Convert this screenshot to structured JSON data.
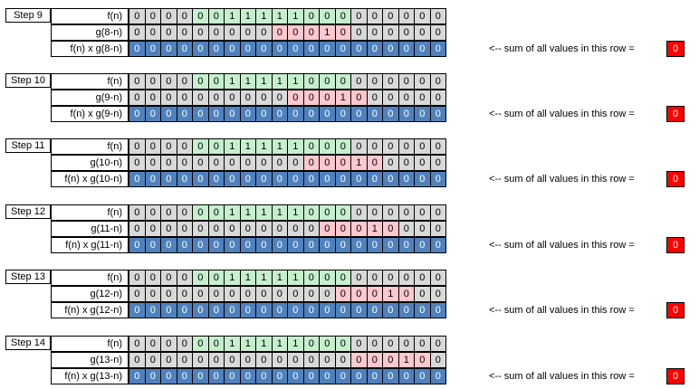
{
  "note_text": "<--  sum of all values in this row =",
  "steps": [
    {
      "label": "Step 9",
      "rows": [
        {
          "label": "f(n)",
          "values": [
            "0",
            "0",
            "0",
            "0",
            "0",
            "0",
            "1",
            "1",
            "1",
            "1",
            "1",
            "0",
            "0",
            "0",
            "0",
            "0",
            "0",
            "0",
            "0",
            "0"
          ],
          "colors": [
            "g",
            "g",
            "g",
            "g",
            "G",
            "G",
            "G",
            "G",
            "G",
            "G",
            "G",
            "G",
            "G",
            "G",
            "g",
            "g",
            "g",
            "g",
            "g",
            "g"
          ]
        },
        {
          "label": "g(8-n)",
          "values": [
            "0",
            "0",
            "0",
            "0",
            "0",
            "0",
            "0",
            "0",
            "0",
            "0",
            "0",
            "0",
            "1",
            "0",
            "0",
            "0",
            "0",
            "0",
            "0",
            "0"
          ],
          "colors": [
            "g",
            "g",
            "g",
            "g",
            "g",
            "g",
            "g",
            "g",
            "g",
            "P",
            "P",
            "P",
            "P",
            "P",
            "g",
            "g",
            "g",
            "g",
            "g",
            "g"
          ]
        },
        {
          "label": "f(n) x g(8-n)",
          "values": [
            "0",
            "0",
            "0",
            "0",
            "0",
            "0",
            "0",
            "0",
            "0",
            "0",
            "0",
            "0",
            "0",
            "0",
            "0",
            "0",
            "0",
            "0",
            "0",
            "0"
          ],
          "colors": [
            "B",
            "B",
            "B",
            "B",
            "B",
            "B",
            "B",
            "B",
            "B",
            "B",
            "B",
            "B",
            "B",
            "B",
            "B",
            "B",
            "B",
            "B",
            "B",
            "B"
          ]
        }
      ],
      "sum": "0"
    },
    {
      "label": "Step 10",
      "rows": [
        {
          "label": "f(n)",
          "values": [
            "0",
            "0",
            "0",
            "0",
            "0",
            "0",
            "1",
            "1",
            "1",
            "1",
            "1",
            "0",
            "0",
            "0",
            "0",
            "0",
            "0",
            "0",
            "0",
            "0"
          ],
          "colors": [
            "g",
            "g",
            "g",
            "g",
            "G",
            "G",
            "G",
            "G",
            "G",
            "G",
            "G",
            "G",
            "G",
            "G",
            "g",
            "g",
            "g",
            "g",
            "g",
            "g"
          ]
        },
        {
          "label": "g(9-n)",
          "values": [
            "0",
            "0",
            "0",
            "0",
            "0",
            "0",
            "0",
            "0",
            "0",
            "0",
            "0",
            "0",
            "0",
            "1",
            "0",
            "0",
            "0",
            "0",
            "0",
            "0"
          ],
          "colors": [
            "g",
            "g",
            "g",
            "g",
            "g",
            "g",
            "g",
            "g",
            "g",
            "g",
            "P",
            "P",
            "P",
            "P",
            "P",
            "g",
            "g",
            "g",
            "g",
            "g"
          ]
        },
        {
          "label": "f(n) x g(9-n)",
          "values": [
            "0",
            "0",
            "0",
            "0",
            "0",
            "0",
            "0",
            "0",
            "0",
            "0",
            "0",
            "0",
            "0",
            "0",
            "0",
            "0",
            "0",
            "0",
            "0",
            "0"
          ],
          "colors": [
            "B",
            "B",
            "B",
            "B",
            "B",
            "B",
            "B",
            "B",
            "B",
            "B",
            "B",
            "B",
            "B",
            "B",
            "B",
            "B",
            "B",
            "B",
            "B",
            "B"
          ]
        }
      ],
      "sum": "0"
    },
    {
      "label": "Step 11",
      "rows": [
        {
          "label": "f(n)",
          "values": [
            "0",
            "0",
            "0",
            "0",
            "0",
            "0",
            "1",
            "1",
            "1",
            "1",
            "1",
            "0",
            "0",
            "0",
            "0",
            "0",
            "0",
            "0",
            "0",
            "0"
          ],
          "colors": [
            "g",
            "g",
            "g",
            "g",
            "G",
            "G",
            "G",
            "G",
            "G",
            "G",
            "G",
            "G",
            "G",
            "G",
            "g",
            "g",
            "g",
            "g",
            "g",
            "g"
          ]
        },
        {
          "label": "g(10-n)",
          "values": [
            "0",
            "0",
            "0",
            "0",
            "0",
            "0",
            "0",
            "0",
            "0",
            "0",
            "0",
            "0",
            "0",
            "0",
            "1",
            "0",
            "0",
            "0",
            "0",
            "0"
          ],
          "colors": [
            "g",
            "g",
            "g",
            "g",
            "g",
            "g",
            "g",
            "g",
            "g",
            "g",
            "g",
            "P",
            "P",
            "P",
            "P",
            "P",
            "g",
            "g",
            "g",
            "g"
          ]
        },
        {
          "label": "f(n) x g(10-n)",
          "values": [
            "0",
            "0",
            "0",
            "0",
            "0",
            "0",
            "0",
            "0",
            "0",
            "0",
            "0",
            "0",
            "0",
            "0",
            "0",
            "0",
            "0",
            "0",
            "0",
            "0"
          ],
          "colors": [
            "B",
            "B",
            "B",
            "B",
            "B",
            "B",
            "B",
            "B",
            "B",
            "B",
            "B",
            "B",
            "B",
            "B",
            "B",
            "B",
            "B",
            "B",
            "B",
            "B"
          ]
        }
      ],
      "sum": "0"
    },
    {
      "label": "Step 12",
      "rows": [
        {
          "label": "f(n)",
          "values": [
            "0",
            "0",
            "0",
            "0",
            "0",
            "0",
            "1",
            "1",
            "1",
            "1",
            "1",
            "0",
            "0",
            "0",
            "0",
            "0",
            "0",
            "0",
            "0",
            "0"
          ],
          "colors": [
            "g",
            "g",
            "g",
            "g",
            "G",
            "G",
            "G",
            "G",
            "G",
            "G",
            "G",
            "G",
            "G",
            "G",
            "g",
            "g",
            "g",
            "g",
            "g",
            "g"
          ]
        },
        {
          "label": "g(11-n)",
          "values": [
            "0",
            "0",
            "0",
            "0",
            "0",
            "0",
            "0",
            "0",
            "0",
            "0",
            "0",
            "0",
            "0",
            "0",
            "0",
            "1",
            "0",
            "0",
            "0",
            "0"
          ],
          "colors": [
            "g",
            "g",
            "g",
            "g",
            "g",
            "g",
            "g",
            "g",
            "g",
            "g",
            "g",
            "g",
            "P",
            "P",
            "P",
            "P",
            "P",
            "g",
            "g",
            "g"
          ]
        },
        {
          "label": "f(n) x g(11-n)",
          "values": [
            "0",
            "0",
            "0",
            "0",
            "0",
            "0",
            "0",
            "0",
            "0",
            "0",
            "0",
            "0",
            "0",
            "0",
            "0",
            "0",
            "0",
            "0",
            "0",
            "0"
          ],
          "colors": [
            "B",
            "B",
            "B",
            "B",
            "B",
            "B",
            "B",
            "B",
            "B",
            "B",
            "B",
            "B",
            "B",
            "B",
            "B",
            "B",
            "B",
            "B",
            "B",
            "B"
          ]
        }
      ],
      "sum": "0"
    },
    {
      "label": "Step 13",
      "rows": [
        {
          "label": "f(n)",
          "values": [
            "0",
            "0",
            "0",
            "0",
            "0",
            "0",
            "1",
            "1",
            "1",
            "1",
            "1",
            "0",
            "0",
            "0",
            "0",
            "0",
            "0",
            "0",
            "0",
            "0"
          ],
          "colors": [
            "g",
            "g",
            "g",
            "g",
            "G",
            "G",
            "G",
            "G",
            "G",
            "G",
            "G",
            "G",
            "G",
            "G",
            "g",
            "g",
            "g",
            "g",
            "g",
            "g"
          ]
        },
        {
          "label": "g(12-n)",
          "values": [
            "0",
            "0",
            "0",
            "0",
            "0",
            "0",
            "0",
            "0",
            "0",
            "0",
            "0",
            "0",
            "0",
            "0",
            "0",
            "0",
            "1",
            "0",
            "0",
            "0"
          ],
          "colors": [
            "g",
            "g",
            "g",
            "g",
            "g",
            "g",
            "g",
            "g",
            "g",
            "g",
            "g",
            "g",
            "g",
            "P",
            "P",
            "P",
            "P",
            "P",
            "g",
            "g"
          ]
        },
        {
          "label": "f(n) x g(12-n)",
          "values": [
            "0",
            "0",
            "0",
            "0",
            "0",
            "0",
            "0",
            "0",
            "0",
            "0",
            "0",
            "0",
            "0",
            "0",
            "0",
            "0",
            "0",
            "0",
            "0",
            "0"
          ],
          "colors": [
            "B",
            "B",
            "B",
            "B",
            "B",
            "B",
            "B",
            "B",
            "B",
            "B",
            "B",
            "B",
            "B",
            "B",
            "B",
            "B",
            "B",
            "B",
            "B",
            "B"
          ]
        }
      ],
      "sum": "0"
    },
    {
      "label": "Step 14",
      "rows": [
        {
          "label": "f(n)",
          "values": [
            "0",
            "0",
            "0",
            "0",
            "0",
            "0",
            "1",
            "1",
            "1",
            "1",
            "1",
            "0",
            "0",
            "0",
            "0",
            "0",
            "0",
            "0",
            "0",
            "0"
          ],
          "colors": [
            "g",
            "g",
            "g",
            "g",
            "G",
            "G",
            "G",
            "G",
            "G",
            "G",
            "G",
            "G",
            "G",
            "G",
            "g",
            "g",
            "g",
            "g",
            "g",
            "g"
          ]
        },
        {
          "label": "g(13-n)",
          "values": [
            "0",
            "0",
            "0",
            "0",
            "0",
            "0",
            "0",
            "0",
            "0",
            "0",
            "0",
            "0",
            "0",
            "0",
            "0",
            "0",
            "0",
            "1",
            "0",
            "0"
          ],
          "colors": [
            "g",
            "g",
            "g",
            "g",
            "g",
            "g",
            "g",
            "g",
            "g",
            "g",
            "g",
            "g",
            "g",
            "g",
            "P",
            "P",
            "P",
            "P",
            "P",
            "g"
          ]
        },
        {
          "label": "f(n) x g(13-n)",
          "values": [
            "0",
            "0",
            "0",
            "0",
            "0",
            "0",
            "0",
            "0",
            "0",
            "0",
            "0",
            "0",
            "0",
            "0",
            "0",
            "0",
            "0",
            "0",
            "0",
            "0"
          ],
          "colors": [
            "B",
            "B",
            "B",
            "B",
            "B",
            "B",
            "B",
            "B",
            "B",
            "B",
            "B",
            "B",
            "B",
            "B",
            "B",
            "B",
            "B",
            "B",
            "B",
            "B"
          ]
        }
      ],
      "sum": "0"
    }
  ],
  "color_map": {
    "g": "#d9d9d9",
    "G": "#c6efce",
    "P": "#ffc7ce",
    "B": "#4f81bd"
  }
}
